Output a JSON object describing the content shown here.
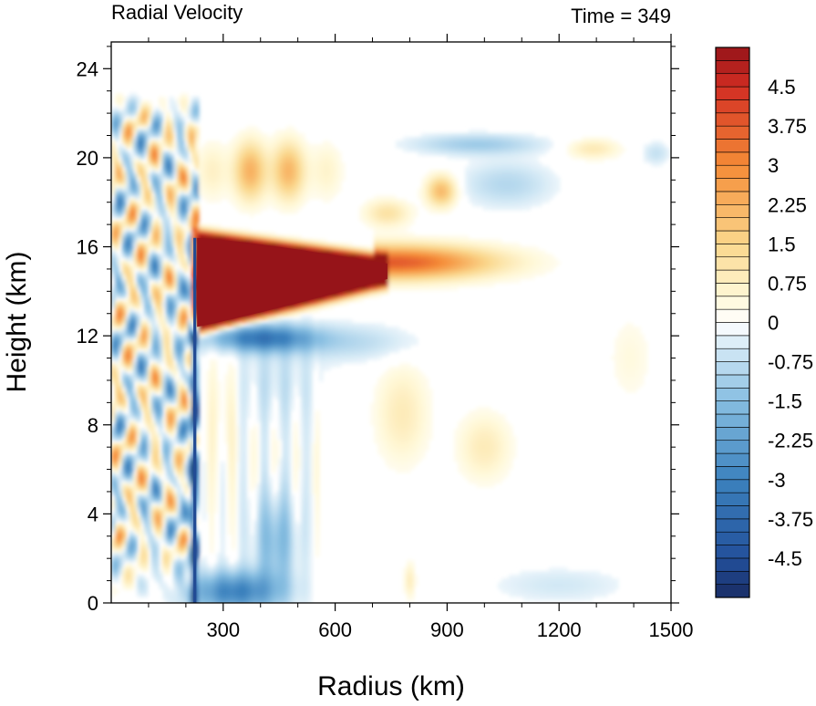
{
  "chart_data": {
    "type": "heatmap",
    "title": "Radial Velocity",
    "time_label": "Time = 349",
    "xlabel": "Radius (km)",
    "ylabel": "Height (km)",
    "xlim": [
      0,
      1500
    ],
    "ylim": [
      0,
      25.2
    ],
    "x_ticks": [
      300,
      600,
      900,
      1200,
      1500
    ],
    "x_tick_labels": [
      "300",
      "600",
      "900",
      "1200",
      "1500"
    ],
    "y_ticks": [
      0,
      4,
      8,
      12,
      16,
      20,
      24
    ],
    "y_tick_labels": [
      "0",
      "4",
      "8",
      "12",
      "16",
      "20",
      "24"
    ],
    "colorbar": {
      "levels": [
        -5.25,
        -5,
        -4.75,
        -4.5,
        -4.25,
        -4,
        -3.75,
        -3.5,
        -3.25,
        -3,
        -2.75,
        -2.5,
        -2.25,
        -2,
        -1.75,
        -1.5,
        -1.25,
        -1,
        -0.75,
        -0.5,
        -0.25,
        0,
        0.25,
        0.5,
        0.75,
        1,
        1.25,
        1.5,
        1.75,
        2,
        2.25,
        2.5,
        2.75,
        3,
        3.25,
        3.5,
        3.75,
        4,
        4.25,
        4.5,
        4.75,
        5,
        5.25
      ],
      "tick_values": [
        4.5,
        3.75,
        3,
        2.25,
        1.5,
        0.75,
        0,
        -0.75,
        -1.5,
        -2.25,
        -3,
        -3.75,
        -4.5
      ],
      "tick_labels": [
        "4.5",
        "3.75",
        "3",
        "2.25",
        "1.5",
        "0.75",
        "0",
        "-0.75",
        "-1.5",
        "-2.25",
        "-3",
        "-3.75",
        "-4.5"
      ],
      "range": [
        -5.25,
        5.25
      ]
    },
    "features": [
      {
        "kind": "outflow_jet",
        "value": 5.5,
        "r_start": 230,
        "r_end": 740,
        "z_center": 14.4,
        "z_half_start": 2.0,
        "z_half_end": 0.35
      },
      {
        "kind": "outflow_tail",
        "value": 3.5,
        "r_start": 740,
        "r_end": 1150,
        "z_center": 15.3,
        "z_half": 0.7
      },
      {
        "kind": "inflow_band",
        "value": -3.0,
        "r_start": 235,
        "r_end": 560,
        "z_center": 11.9,
        "z_half": 0.55
      },
      {
        "kind": "upper_outflow",
        "value": 2.8,
        "r_start": 280,
        "r_end": 560,
        "z_center": 19.3,
        "z_half": 1.3
      },
      {
        "kind": "upper_inflow",
        "value": -1.4,
        "r_start": 800,
        "r_end": 1150,
        "z_center": 20.6,
        "z_half": 0.5
      },
      {
        "kind": "eyewall_inflow_column",
        "value": -4.0,
        "r": 225,
        "z_range": [
          0,
          16.5
        ]
      },
      {
        "kind": "boundary_inflow",
        "value": -3.0,
        "r_start": 235,
        "r_end": 560,
        "z_center": 0.5,
        "z_half": 0.9
      }
    ]
  }
}
